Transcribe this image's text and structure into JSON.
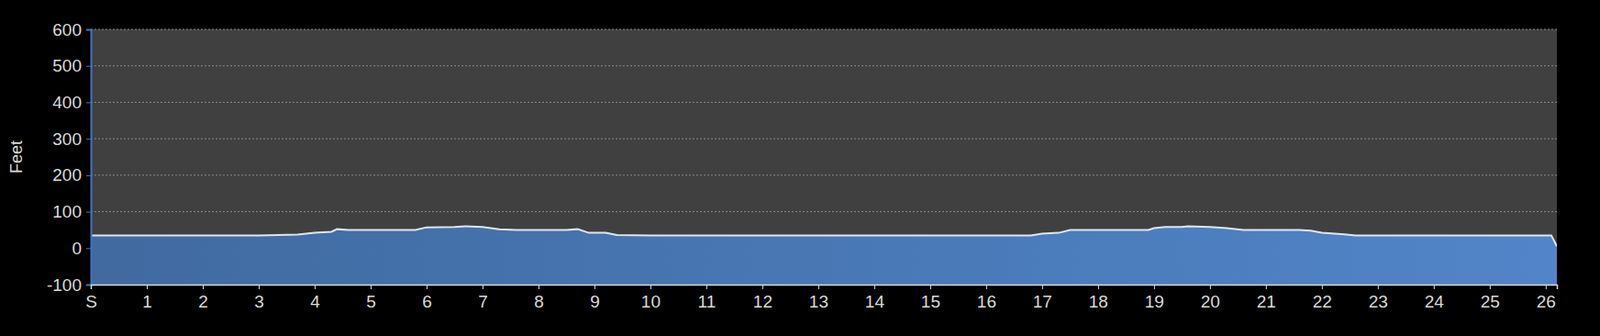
{
  "chart_data": {
    "type": "area",
    "y_label": "Feet",
    "x": [
      0,
      1,
      2,
      3,
      3.7,
      4.0,
      4.3,
      4.4,
      4.6,
      5.8,
      6.0,
      6.5,
      6.7,
      7.0,
      7.3,
      7.6,
      8.5,
      8.7,
      8.9,
      9.2,
      9.4,
      10,
      11,
      12,
      13,
      14,
      15,
      16,
      16.8,
      17.0,
      17.3,
      17.5,
      17.7,
      18.9,
      19.0,
      19.2,
      19.5,
      19.6,
      20.0,
      20.3,
      20.6,
      21.6,
      21.8,
      22.0,
      22.4,
      22.6,
      23,
      24,
      25,
      26.1,
      26.2
    ],
    "values": [
      35,
      35,
      35,
      35,
      37,
      42,
      45,
      52,
      50,
      50,
      57,
      58,
      60,
      58,
      52,
      50,
      50,
      52,
      42,
      42,
      36,
      35,
      35,
      35,
      35,
      35,
      35,
      35,
      35,
      40,
      42,
      50,
      50,
      50,
      55,
      58,
      58,
      60,
      58,
      55,
      50,
      50,
      48,
      42,
      38,
      35,
      35,
      35,
      35,
      35,
      5
    ],
    "color": "#4a7ab8",
    "xlim": [
      0,
      26.2
    ],
    "xticks": [
      {
        "value": 0,
        "label": "S"
      },
      1,
      2,
      3,
      4,
      5,
      6,
      7,
      8,
      9,
      10,
      11,
      12,
      13,
      14,
      15,
      16,
      17,
      18,
      19,
      20,
      21,
      22,
      23,
      24,
      25,
      26
    ],
    "ylim": [
      -100,
      600
    ],
    "yticks": [
      -100,
      0,
      100,
      200,
      300,
      400,
      500,
      600
    ],
    "grid": true
  }
}
